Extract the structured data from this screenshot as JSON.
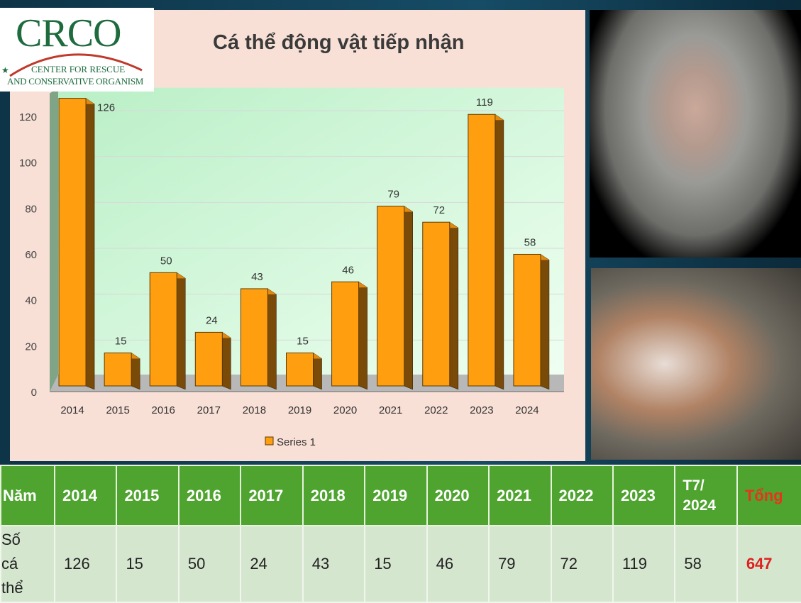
{
  "logo": {
    "name": "CRCO",
    "line1": "CENTER FOR RESCUE",
    "line2": "AND CONSERVATIVE ORGANISM"
  },
  "chart_data": {
    "type": "bar",
    "title": "Cá thể  động vật tiếp nhận",
    "categories": [
      "2014",
      "2015",
      "2016",
      "2017",
      "2018",
      "2019",
      "2020",
      "2021",
      "2022",
      "2023",
      "2024"
    ],
    "series": [
      {
        "name": "Series 1",
        "values": [
          126,
          15,
          50,
          24,
          43,
          15,
          46,
          79,
          72,
          119,
          58
        ]
      }
    ],
    "yticks": [
      0,
      20,
      40,
      60,
      80,
      100,
      120
    ],
    "ylim": [
      0,
      120
    ],
    "grid": true,
    "legend": "bottom",
    "colors": {
      "bar": "#ff9f10",
      "bar_side": "#7a4a08",
      "bar_top": "#e08a10"
    }
  },
  "table": {
    "header": [
      "Năm",
      "2014",
      "2015",
      "2016",
      "2017",
      "2018",
      "2019",
      "2020",
      "2021",
      "2022",
      "2023",
      "T7/ 2024",
      "Tổng"
    ],
    "row": [
      "Số cá thể",
      "126",
      "15",
      "50",
      "24",
      "43",
      "15",
      "46",
      "79",
      "72",
      "119",
      "58",
      "647"
    ]
  }
}
